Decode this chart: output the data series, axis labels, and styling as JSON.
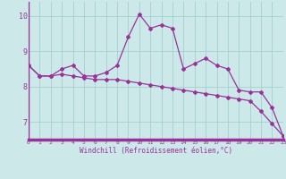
{
  "xlabel": "Windchill (Refroidissement éolien,°C)",
  "background_color": "#cce8e8",
  "grid_color": "#99cccc",
  "line_color": "#993399",
  "axis_color": "#993399",
  "x_values": [
    0,
    1,
    2,
    3,
    4,
    5,
    6,
    7,
    8,
    9,
    10,
    11,
    12,
    13,
    14,
    15,
    16,
    17,
    18,
    19,
    20,
    21,
    22,
    23
  ],
  "line1": [
    8.6,
    8.3,
    8.3,
    8.5,
    8.6,
    8.3,
    8.3,
    8.4,
    8.6,
    9.4,
    10.05,
    9.65,
    9.75,
    9.65,
    8.5,
    8.65,
    8.8,
    8.6,
    8.5,
    7.9,
    7.85,
    7.85,
    7.4,
    6.6
  ],
  "line2": [
    8.6,
    8.3,
    8.3,
    8.35,
    8.3,
    8.25,
    8.2,
    8.2,
    8.2,
    8.15,
    8.1,
    8.05,
    8.0,
    7.95,
    7.9,
    7.85,
    7.8,
    7.75,
    7.7,
    7.65,
    7.6,
    7.3,
    6.95,
    6.6
  ],
  "ylim": [
    6.5,
    10.4
  ],
  "xlim": [
    0,
    23
  ],
  "yticks": [
    7,
    8,
    9,
    10
  ],
  "xticks": [
    0,
    1,
    2,
    3,
    4,
    5,
    6,
    7,
    8,
    9,
    10,
    11,
    12,
    13,
    14,
    15,
    16,
    17,
    18,
    19,
    20,
    21,
    22,
    23
  ]
}
